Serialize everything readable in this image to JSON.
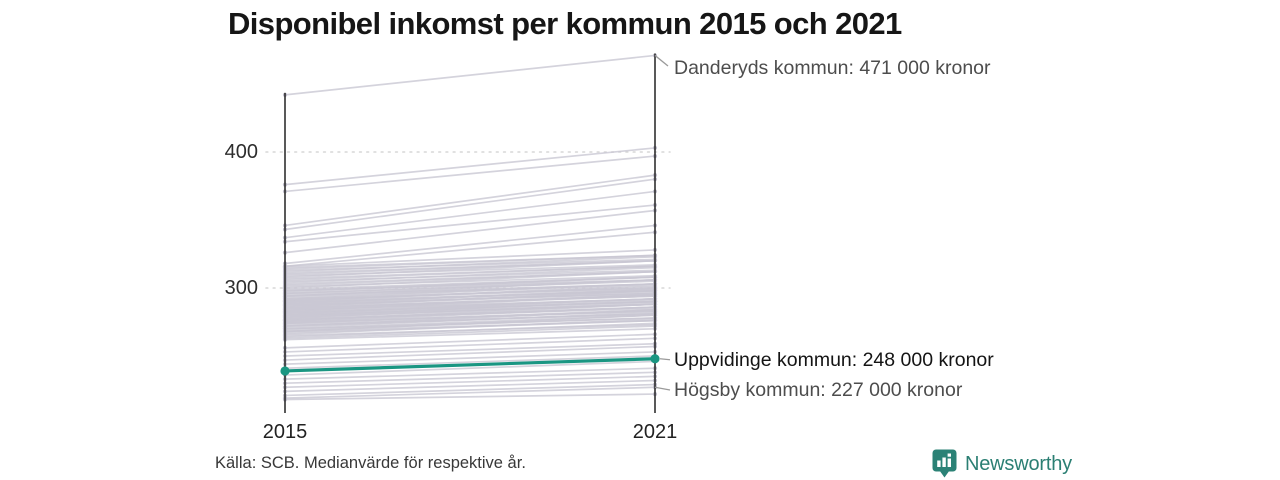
{
  "title": "Disponibel inkomst per kommun 2015 och 2021",
  "source": "Källa: SCB. Medianvärde för respektive år.",
  "brand": {
    "name": "Newsworthy",
    "icon": "newsworthy-logo-icon",
    "color": "#2b7f73"
  },
  "axes": {
    "y_ticks": [
      {
        "label": "400",
        "value": 400
      },
      {
        "label": "300",
        "value": 300
      }
    ],
    "x_ticks": [
      {
        "label": "2015",
        "x": 2015
      },
      {
        "label": "2021",
        "x": 2021
      }
    ]
  },
  "annotations": [
    {
      "id": "danderyd",
      "label": "Danderyds kommun: 471 000 kronor",
      "value_2021": 471,
      "emphasis": "gray"
    },
    {
      "id": "uppvidinge",
      "label": "Uppvidinge kommun: 248 000 kronor",
      "value_2021": 248,
      "emphasis": "dark"
    },
    {
      "id": "hogsby",
      "label": "Högsby kommun: 227 000 kronor",
      "value_2021": 227,
      "emphasis": "gray"
    }
  ],
  "chart_data": {
    "type": "line",
    "subtype": "slopegraph",
    "title": "Disponibel inkomst per kommun 2015 och 2021",
    "x": [
      2015,
      2021
    ],
    "unit": "tusen kronor (medianvärde)",
    "ylim": [
      210,
      485
    ],
    "grid_values": [
      300,
      400
    ],
    "grid_style": "dotted-horizontal",
    "line_color": "#c9c7d3",
    "highlight_color": "#1a9682",
    "axis_color": "#222222",
    "highlight_series": {
      "name": "Uppvidinge kommun",
      "values": [
        239,
        248
      ]
    },
    "annotated_series": [
      {
        "name": "Danderyds kommun",
        "values": [
          442,
          471
        ]
      },
      {
        "name": "Uppvidinge kommun",
        "values": [
          239,
          248
        ]
      },
      {
        "name": "Högsby kommun",
        "values": [
          219,
          227
        ]
      }
    ],
    "background_series": [
      [
        442,
        471
      ],
      [
        376,
        403
      ],
      [
        371,
        397
      ],
      [
        346,
        383
      ],
      [
        343,
        380
      ],
      [
        337,
        371
      ],
      [
        334,
        361
      ],
      [
        326,
        357
      ],
      [
        318,
        346
      ],
      [
        316,
        341
      ],
      [
        262,
        270
      ],
      [
        263,
        272
      ],
      [
        264,
        274
      ],
      [
        265,
        273
      ],
      [
        266,
        277
      ],
      [
        267,
        276
      ],
      [
        268,
        276
      ],
      [
        268,
        280
      ],
      [
        269,
        278
      ],
      [
        270,
        280
      ],
      [
        270,
        278
      ],
      [
        271,
        282
      ],
      [
        272,
        281
      ],
      [
        272,
        284
      ],
      [
        273,
        281
      ],
      [
        274,
        284
      ],
      [
        274,
        283
      ],
      [
        275,
        286
      ],
      [
        275,
        283
      ],
      [
        276,
        286
      ],
      [
        276,
        288
      ],
      [
        277,
        286
      ],
      [
        277,
        285
      ],
      [
        278,
        288
      ],
      [
        278,
        289
      ],
      [
        279,
        288
      ],
      [
        279,
        291
      ],
      [
        280,
        288
      ],
      [
        280,
        290
      ],
      [
        281,
        290
      ],
      [
        281,
        292
      ],
      [
        282,
        290
      ],
      [
        282,
        292
      ],
      [
        283,
        295
      ],
      [
        283,
        292
      ],
      [
        284,
        292
      ],
      [
        284,
        295
      ],
      [
        285,
        295
      ],
      [
        285,
        294
      ],
      [
        286,
        294
      ],
      [
        286,
        298
      ],
      [
        287,
        297
      ],
      [
        287,
        296
      ],
      [
        288,
        299
      ],
      [
        288,
        296
      ],
      [
        289,
        299
      ],
      [
        289,
        298
      ],
      [
        290,
        302
      ],
      [
        290,
        298
      ],
      [
        291,
        301
      ],
      [
        291,
        300
      ],
      [
        292,
        303
      ],
      [
        292,
        300
      ],
      [
        293,
        303
      ],
      [
        294,
        303
      ],
      [
        294,
        306
      ],
      [
        295,
        303
      ],
      [
        296,
        306
      ],
      [
        296,
        305
      ],
      [
        297,
        308
      ],
      [
        298,
        306
      ],
      [
        298,
        308
      ],
      [
        299,
        308
      ],
      [
        300,
        312
      ],
      [
        301,
        309
      ],
      [
        302,
        312
      ],
      [
        303,
        312
      ],
      [
        304,
        315
      ],
      [
        305,
        313
      ],
      [
        306,
        316
      ],
      [
        307,
        316
      ],
      [
        308,
        320
      ],
      [
        309,
        317
      ],
      [
        310,
        320
      ],
      [
        311,
        320
      ],
      [
        312,
        323
      ],
      [
        313,
        321
      ],
      [
        314,
        324
      ],
      [
        315,
        324
      ],
      [
        316,
        328
      ],
      [
        256,
        266
      ],
      [
        253,
        263
      ],
      [
        250,
        259
      ],
      [
        247,
        257
      ],
      [
        244,
        253
      ],
      [
        241,
        250
      ],
      [
        236,
        246
      ],
      [
        233,
        241
      ],
      [
        230,
        238
      ],
      [
        227,
        235
      ],
      [
        224,
        232
      ],
      [
        221,
        229
      ],
      [
        219,
        227
      ],
      [
        218,
        222
      ]
    ]
  },
  "geometry_note": "y axis: 400 at gridline, 300 at gridline; two vertical year axes"
}
